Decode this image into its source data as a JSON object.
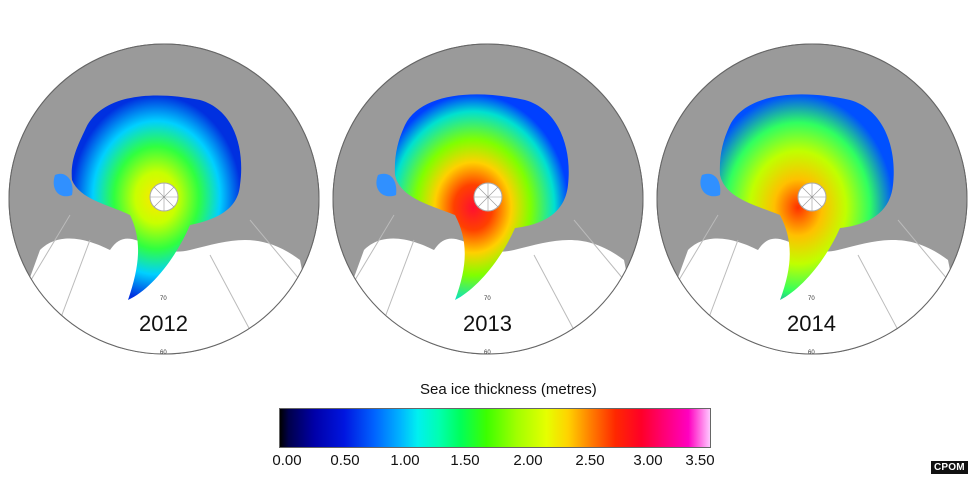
{
  "maps": [
    {
      "year": "2012"
    },
    {
      "year": "2013"
    },
    {
      "year": "2014"
    }
  ],
  "colorbar": {
    "title": "Sea ice thickness (metres)",
    "ticks": [
      "0.00",
      "0.50",
      "1.00",
      "1.50",
      "2.00",
      "2.50",
      "3.00",
      "3.50"
    ],
    "range": [
      0,
      3.5
    ],
    "colors": {
      "low": "#000000",
      "mid_blue": "#0064ff",
      "cyan": "#00f0f0",
      "green": "#3cff00",
      "yellow": "#e6ff00",
      "red": "#ff2800",
      "high": "#ffc8ff"
    }
  },
  "latitude_labels": [
    "70",
    "60"
  ],
  "credit": "CPOM"
}
